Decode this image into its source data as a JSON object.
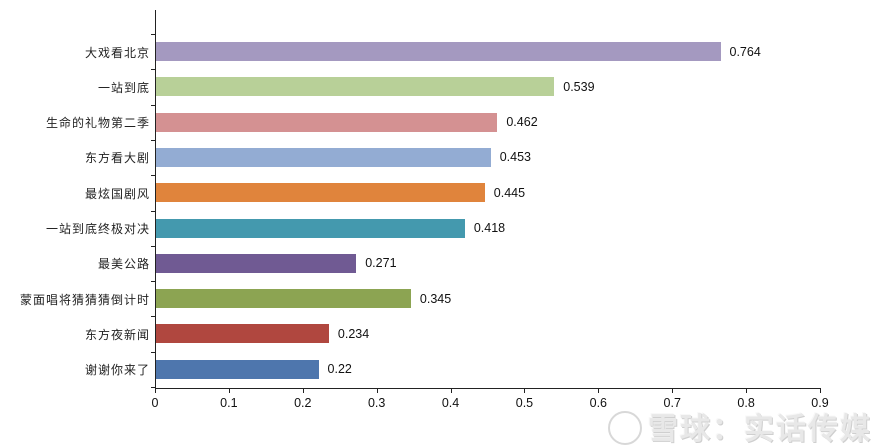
{
  "chart_data": {
    "type": "bar",
    "orientation": "horizontal",
    "title": "",
    "xlabel": "",
    "ylabel": "",
    "xlim": [
      0,
      0.9
    ],
    "x_ticks": [
      "0",
      "0.1",
      "0.2",
      "0.3",
      "0.4",
      "0.5",
      "0.6",
      "0.7",
      "0.8",
      "0.9"
    ],
    "grid": false,
    "legend": null,
    "categories": [
      "大戏看北京",
      "一站到底",
      "生命的礼物第二季",
      "东方看大剧",
      "最炫国剧风",
      "一站到底终极对决",
      "最美公路",
      "蒙面唱将猜猜猜倒计时",
      "东方夜新闻",
      "谢谢你来了"
    ],
    "values": [
      0.764,
      0.539,
      0.462,
      0.453,
      0.445,
      0.418,
      0.271,
      0.345,
      0.234,
      0.22
    ],
    "value_labels": [
      "0.764",
      "0.539",
      "0.462",
      "0.453",
      "0.445",
      "0.418",
      "0.271",
      "0.345",
      "0.234",
      "0.22"
    ],
    "colors": [
      "#a499c0",
      "#b8d098",
      "#d49192",
      "#93acd3",
      "#e0843c",
      "#4499ae",
      "#705a93",
      "#8ca452",
      "#b0473f",
      "#4e76ad"
    ]
  },
  "watermark": {
    "text": "雪球：实话传媒",
    "icon": "snowball-logo-icon"
  }
}
